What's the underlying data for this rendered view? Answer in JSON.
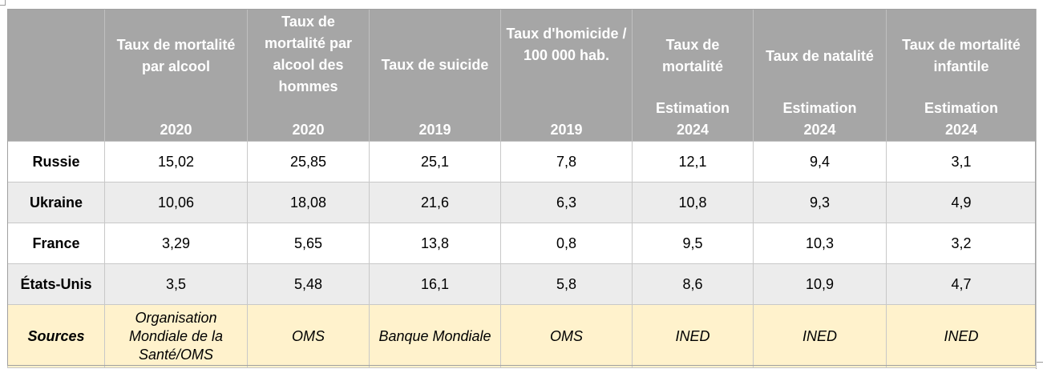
{
  "header": {
    "columns": [
      {
        "title": "",
        "year": ""
      },
      {
        "title": "Taux de mortalité par alcool",
        "year": "2020"
      },
      {
        "title": "Taux de mortalité par alcool des hommes",
        "year": "2020"
      },
      {
        "title": "Taux de suicide",
        "year": "2019"
      },
      {
        "title": "Taux d'homicide / 100 000 hab.",
        "year": "2019"
      },
      {
        "title": "Taux de mortalité",
        "year_line1": "Estimation",
        "year": "2024"
      },
      {
        "title": "Taux de natalité",
        "year_line1": "Estimation",
        "year": "2024"
      },
      {
        "title": "Taux de mortalité infantile",
        "year_line1": "Estimation",
        "year": "2024"
      }
    ]
  },
  "rows": [
    {
      "country": "Russie",
      "values": [
        "15,02",
        "25,85",
        "25,1",
        "7,8",
        "12,1",
        "9,4",
        "3,1"
      ]
    },
    {
      "country": "Ukraine",
      "values": [
        "10,06",
        "18,08",
        "21,6",
        "6,3",
        "10,8",
        "9,3",
        "4,9"
      ]
    },
    {
      "country": "France",
      "values": [
        "3,29",
        "5,65",
        "13,8",
        "0,8",
        "9,5",
        "10,3",
        "3,2"
      ]
    },
    {
      "country": "États-Unis",
      "values": [
        "3,5",
        "5,48",
        "16,1",
        "5,8",
        "8,6",
        "10,9",
        "4,7"
      ]
    }
  ],
  "sources": {
    "label": "Sources",
    "values": [
      "Organisation Mondiale de la Santé/OMS",
      "OMS",
      "Banque Mondiale",
      "OMS",
      "INED",
      "INED",
      "INED"
    ]
  },
  "colors": {
    "header_bg": "#a6a6a6",
    "alt_row_bg": "#ececec",
    "sources_bg": "#fff2cc"
  }
}
